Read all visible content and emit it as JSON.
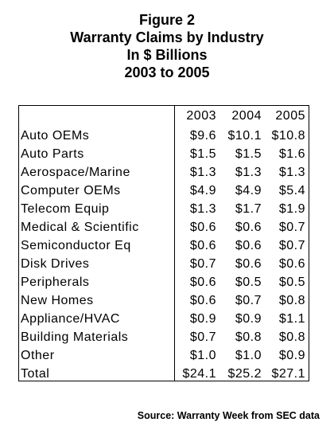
{
  "title_lines": [
    "Figure 2",
    "Warranty Claims by Industry",
    "In $ Billions",
    "2003 to 2005"
  ],
  "source": "Source: Warranty Week from SEC data",
  "chart_data": {
    "type": "table",
    "title": "Figure 2 Warranty Claims by Industry In $ Billions 2003 to 2005",
    "columns": [
      "2003",
      "2004",
      "2005"
    ],
    "rows": [
      {
        "label": "Auto OEMs",
        "values": [
          "$9.6",
          "$10.1",
          "$10.8"
        ]
      },
      {
        "label": "Auto Parts",
        "values": [
          "$1.5",
          "$1.5",
          "$1.6"
        ]
      },
      {
        "label": "Aerospace/Marine",
        "values": [
          "$1.3",
          "$1.3",
          "$1.3"
        ]
      },
      {
        "label": "Computer OEMs",
        "values": [
          "$4.9",
          "$4.9",
          "$5.4"
        ]
      },
      {
        "label": "Telecom Equip",
        "values": [
          "$1.3",
          "$1.7",
          "$1.9"
        ]
      },
      {
        "label": "Medical & Scientific",
        "values": [
          "$0.6",
          "$0.6",
          "$0.7"
        ]
      },
      {
        "label": "Semiconductor Eq",
        "values": [
          "$0.6",
          "$0.6",
          "$0.7"
        ]
      },
      {
        "label": "Disk Drives",
        "values": [
          "$0.7",
          "$0.6",
          "$0.6"
        ]
      },
      {
        "label": "Peripherals",
        "values": [
          "$0.6",
          "$0.5",
          "$0.5"
        ]
      },
      {
        "label": "New Homes",
        "values": [
          "$0.6",
          "$0.7",
          "$0.8"
        ]
      },
      {
        "label": "Appliance/HVAC",
        "values": [
          "$0.9",
          "$0.9",
          "$1.1"
        ]
      },
      {
        "label": "Building Materials",
        "values": [
          "$0.7",
          "$0.8",
          "$0.8"
        ]
      },
      {
        "label": "Other",
        "values": [
          "$1.0",
          "$1.0",
          "$0.9"
        ]
      },
      {
        "label": "Total",
        "values": [
          "$24.1",
          "$25.2",
          "$27.1"
        ]
      }
    ]
  }
}
